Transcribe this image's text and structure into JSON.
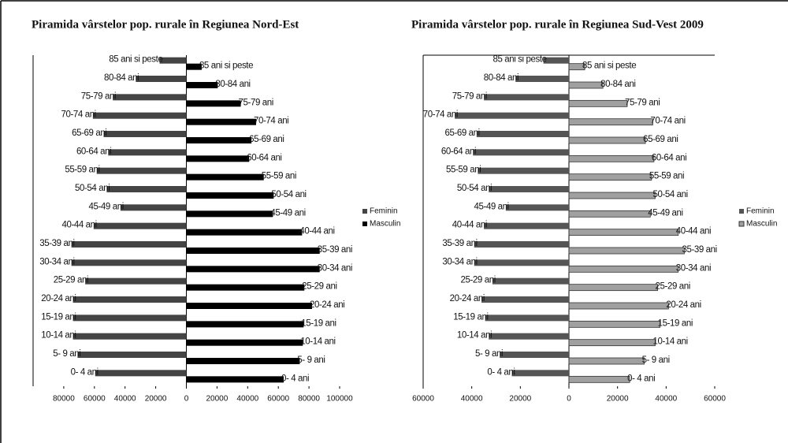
{
  "chart_data": [
    {
      "type": "bar",
      "orientation": "horizontal",
      "title": "Piramida vârstelor pop. rurale în Regiunea Nord-Est",
      "categories": [
        "0- 4 ani",
        "5- 9 ani",
        "10-14 ani",
        "15-19 ani",
        "20-24 ani",
        "25-29 ani",
        "30-34 ani",
        "35-39 ani",
        "40-44 ani",
        "45-49 ani",
        "50-54 ani",
        "55-59 ani",
        "60-64 ani",
        "65-69 ani",
        "70-74 ani",
        "75-79 ani",
        "80-84 ani",
        "85 ani si peste"
      ],
      "series": [
        {
          "name": "Feminin",
          "color": "#444444",
          "values": [
            -59500,
            -71000,
            -74000,
            -74000,
            -74000,
            -66000,
            -75000,
            -75000,
            -60500,
            -43000,
            -52000,
            -58500,
            -51000,
            -54000,
            -61000,
            -48000,
            -33000,
            -17500
          ]
        },
        {
          "name": "Masculin",
          "color": "#000000",
          "values": [
            63500,
            74000,
            76000,
            76500,
            82000,
            77000,
            87000,
            87000,
            75500,
            56500,
            57000,
            50500,
            41000,
            42500,
            45500,
            35500,
            20500,
            10000
          ]
        }
      ],
      "xlim": [
        -100000,
        100000
      ],
      "xticks": [
        {
          "value": -80000,
          "label": "80000"
        },
        {
          "value": -60000,
          "label": "60000"
        },
        {
          "value": -40000,
          "label": "40000"
        },
        {
          "value": -20000,
          "label": "20000"
        },
        0,
        20000,
        40000,
        60000,
        80000,
        100000
      ],
      "legend": "right"
    },
    {
      "type": "bar",
      "orientation": "horizontal",
      "title": "Piramida vârstelor pop. rurale în Regiunea Sud-Vest 2009",
      "categories": [
        "0- 4 ani",
        "5- 9 ani",
        "10-14 ani",
        "15-19 ani",
        "20-24 ani",
        "25-29 ani",
        "30-34 ani",
        "35-39 ani",
        "40-44 ani",
        "45-49 ani",
        "50-54 ani",
        "55-59 ani",
        "60-64 ani",
        "65-69 ani",
        "70-74 ani",
        "75-79 ani",
        "80-84 ani",
        "85 ani si peste"
      ],
      "series": [
        {
          "name": "Feminin",
          "color": "#555555",
          "values": [
            -23500,
            -28500,
            -33000,
            -34500,
            -36000,
            -31500,
            -39000,
            -39000,
            -35000,
            -26000,
            -33000,
            -37500,
            -39500,
            -38000,
            -47000,
            -35000,
            -22000,
            -10500
          ]
        },
        {
          "name": "Masculin",
          "color": "#a0a0a0",
          "values": [
            25000,
            31000,
            35500,
            37500,
            41000,
            36500,
            45000,
            47500,
            45000,
            33500,
            35500,
            34000,
            35000,
            31500,
            34500,
            24000,
            14000,
            6500
          ]
        }
      ],
      "xlim": [
        -60000,
        60000
      ],
      "xticks": [
        {
          "value": -60000,
          "label": "60000"
        },
        {
          "value": -40000,
          "label": "40000"
        },
        {
          "value": -20000,
          "label": "20000"
        },
        0,
        20000,
        40000,
        60000
      ],
      "legend": "right"
    }
  ]
}
